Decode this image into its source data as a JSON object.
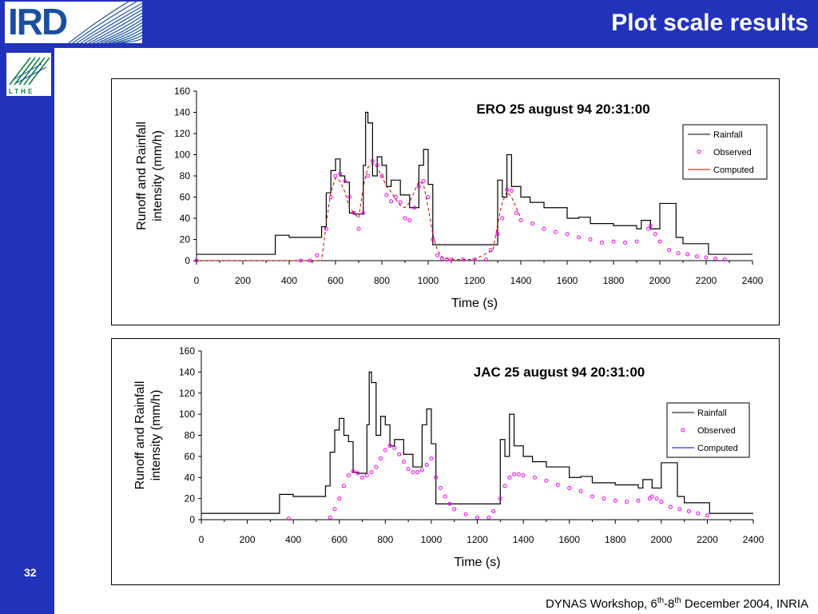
{
  "header": {
    "title": "Plot scale results",
    "logo_text": "IRD",
    "sub_logo_text": "LTHE"
  },
  "slide": {
    "number": "32"
  },
  "footer": {
    "prefix": "DYNAS Workshop, 6",
    "sup1": "th",
    "mid": "-8",
    "sup2": "th",
    "suffix": " December 2004, INRIA"
  },
  "colors": {
    "brand_blue": "#2233bb",
    "observed": "#ee00ee",
    "computed_ero": "#cc0000",
    "computed_jac": "#0000cc",
    "rainfall": "#000000"
  },
  "chart_data": [
    {
      "type": "line",
      "title": "ERO  25 august 94 20:31:00",
      "xlabel": "Time  (s)",
      "ylabel": [
        "Runoff and Rainfall",
        "intensity (mm/h)"
      ],
      "xlim": [
        0,
        2400
      ],
      "ylim": [
        0,
        160
      ],
      "xticks": [
        0,
        200,
        400,
        600,
        800,
        1000,
        1200,
        1400,
        1600,
        1800,
        2000,
        2200,
        2400
      ],
      "yticks": [
        0,
        20,
        40,
        60,
        80,
        100,
        120,
        140,
        160
      ],
      "legend_position": "right",
      "series": [
        {
          "name": "Rainfall",
          "style": "step",
          "color": "#000000",
          "x": [
            0,
            340,
            400,
            480,
            540,
            560,
            580,
            600,
            620,
            640,
            660,
            680,
            720,
            730,
            740,
            760,
            780,
            800,
            820,
            840,
            880,
            920,
            940,
            960,
            980,
            1000,
            1020,
            1200,
            1280,
            1300,
            1320,
            1340,
            1360,
            1400,
            1440,
            1500,
            1600,
            1650,
            1700,
            1800,
            1900,
            1920,
            1960,
            2000,
            2070,
            2100,
            2170,
            2210,
            2400
          ],
          "y": [
            6,
            24,
            22,
            22,
            32,
            64,
            85,
            96,
            80,
            74,
            45,
            44,
            90,
            140,
            130,
            80,
            98,
            90,
            70,
            76,
            62,
            50,
            50,
            90,
            105,
            72,
            15,
            15,
            15,
            76,
            60,
            100,
            70,
            60,
            55,
            50,
            40,
            41,
            35,
            33,
            30,
            38,
            30,
            54,
            22,
            16,
            16,
            6,
            6
          ]
        },
        {
          "name": "Observed",
          "style": "marker",
          "color": "#ee00ee",
          "x": [
            0,
            450,
            490,
            520,
            560,
            580,
            600,
            620,
            640,
            660,
            680,
            700,
            720,
            740,
            760,
            780,
            800,
            820,
            840,
            860,
            880,
            900,
            920,
            940,
            960,
            980,
            1000,
            1020,
            1040,
            1060,
            1080,
            1100,
            1150,
            1200,
            1250,
            1270,
            1300,
            1320,
            1340,
            1360,
            1380,
            1400,
            1450,
            1500,
            1550,
            1600,
            1650,
            1700,
            1750,
            1800,
            1850,
            1900,
            1950,
            1960,
            1980,
            2000,
            2040,
            2080,
            2120,
            2160,
            2200,
            2240,
            2280
          ],
          "y": [
            0,
            0,
            0,
            5,
            30,
            60,
            80,
            82,
            75,
            60,
            45,
            30,
            45,
            80,
            94,
            90,
            80,
            62,
            56,
            60,
            55,
            40,
            38,
            50,
            70,
            75,
            60,
            20,
            5,
            2,
            1,
            1,
            1,
            1,
            1,
            10,
            25,
            40,
            67,
            66,
            45,
            38,
            35,
            30,
            27,
            25,
            22,
            20,
            17,
            18,
            17,
            18,
            30,
            33,
            25,
            18,
            10,
            7,
            6,
            4,
            3,
            2,
            1
          ]
        },
        {
          "name": "Computed",
          "style": "dash",
          "color": "#cc0000",
          "x": [
            0,
            540,
            560,
            580,
            600,
            620,
            640,
            660,
            680,
            700,
            720,
            740,
            760,
            780,
            800,
            820,
            840,
            860,
            880,
            900,
            920,
            940,
            960,
            980,
            1000,
            1020,
            1040,
            1060,
            1100,
            1200,
            1280,
            1300,
            1320,
            1340,
            1360,
            1380,
            1400
          ],
          "y": [
            0,
            0,
            35,
            65,
            78,
            75,
            65,
            50,
            45,
            40,
            70,
            88,
            92,
            88,
            80,
            70,
            65,
            58,
            52,
            50,
            55,
            65,
            75,
            72,
            50,
            25,
            10,
            3,
            1,
            1,
            10,
            35,
            55,
            65,
            60,
            50,
            40
          ]
        }
      ]
    },
    {
      "type": "line",
      "title": "JAC  25 august 94 20:31:00",
      "xlabel": "Time  (s)",
      "ylabel": [
        "Runoff and Rainfall",
        "intensity (mm/h)"
      ],
      "xlim": [
        0,
        2400
      ],
      "ylim": [
        0,
        160
      ],
      "xticks": [
        0,
        200,
        400,
        600,
        800,
        1000,
        1200,
        1400,
        1600,
        1800,
        2000,
        2200,
        2400
      ],
      "yticks": [
        0,
        20,
        40,
        60,
        80,
        100,
        120,
        140,
        160
      ],
      "legend_position": "right",
      "series": [
        {
          "name": "Rainfall",
          "style": "step",
          "color": "#000000",
          "x": [
            0,
            340,
            400,
            480,
            540,
            560,
            580,
            600,
            620,
            640,
            660,
            680,
            720,
            730,
            740,
            760,
            780,
            800,
            820,
            840,
            880,
            920,
            940,
            960,
            980,
            1000,
            1020,
            1200,
            1280,
            1300,
            1320,
            1340,
            1360,
            1400,
            1440,
            1500,
            1600,
            1650,
            1700,
            1800,
            1900,
            1920,
            1960,
            2000,
            2070,
            2100,
            2170,
            2210,
            2400
          ],
          "y": [
            6,
            24,
            22,
            22,
            32,
            64,
            85,
            96,
            80,
            74,
            45,
            44,
            90,
            140,
            130,
            80,
            98,
            90,
            70,
            76,
            62,
            50,
            50,
            90,
            105,
            72,
            15,
            15,
            15,
            76,
            60,
            100,
            70,
            60,
            55,
            50,
            40,
            41,
            35,
            33,
            30,
            38,
            30,
            54,
            22,
            16,
            16,
            6,
            6
          ]
        },
        {
          "name": "Observed",
          "style": "marker",
          "color": "#ee00ee",
          "x": [
            380,
            560,
            580,
            600,
            620,
            640,
            660,
            680,
            700,
            720,
            740,
            760,
            780,
            800,
            820,
            840,
            860,
            880,
            900,
            920,
            940,
            960,
            980,
            1000,
            1020,
            1040,
            1060,
            1080,
            1100,
            1150,
            1200,
            1250,
            1270,
            1300,
            1320,
            1340,
            1360,
            1380,
            1400,
            1450,
            1500,
            1550,
            1600,
            1650,
            1700,
            1750,
            1800,
            1850,
            1900,
            1950,
            1960,
            1980,
            2000,
            2040,
            2080,
            2120,
            2160,
            2200
          ],
          "y": [
            1,
            2,
            10,
            20,
            32,
            42,
            46,
            44,
            40,
            42,
            45,
            50,
            58,
            66,
            70,
            68,
            62,
            55,
            48,
            45,
            45,
            47,
            52,
            58,
            40,
            30,
            22,
            15,
            10,
            5,
            2,
            2,
            8,
            20,
            32,
            40,
            43,
            43,
            42,
            40,
            37,
            33,
            30,
            27,
            22,
            20,
            18,
            17,
            18,
            20,
            22,
            20,
            17,
            12,
            10,
            8,
            6,
            4
          ]
        },
        {
          "name": "Computed",
          "style": "solid",
          "color": "#0000cc",
          "x": [],
          "y": []
        }
      ]
    }
  ]
}
